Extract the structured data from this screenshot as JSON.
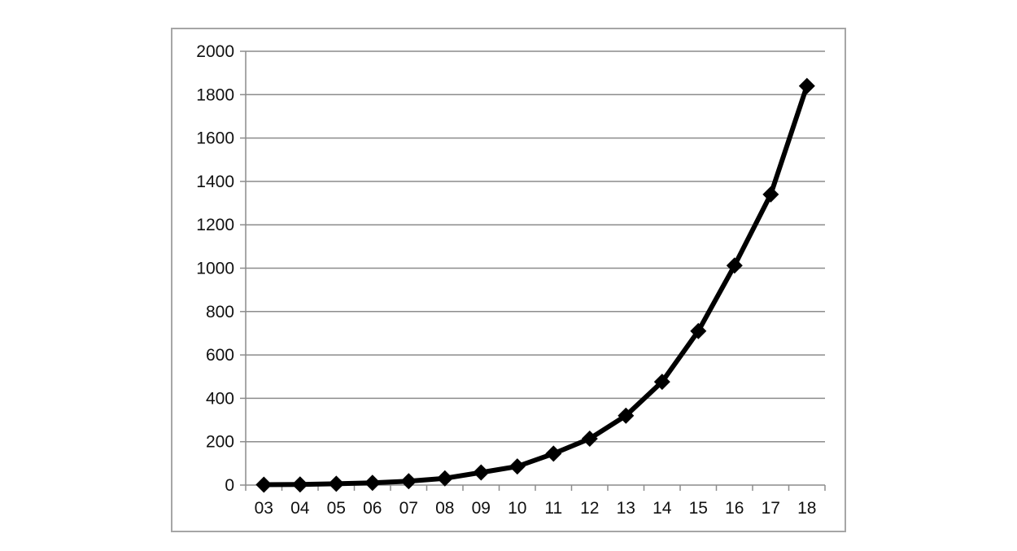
{
  "chart_data": {
    "type": "line",
    "categories": [
      "03",
      "04",
      "05",
      "06",
      "07",
      "08",
      "09",
      "10",
      "11",
      "12",
      "13",
      "14",
      "15",
      "16",
      "17",
      "18"
    ],
    "series": [
      {
        "values": [
          2,
          3,
          6,
          10,
          18,
          31,
          58,
          86,
          145,
          214,
          320,
          476,
          710,
          1012,
          1340,
          1840
        ]
      }
    ],
    "title": "",
    "xlabel": "",
    "ylabel": "",
    "ylim": [
      0,
      2000
    ],
    "yticks": [
      "0",
      "200",
      "400",
      "600",
      "800",
      "1000",
      "1200",
      "1400",
      "1600",
      "1800",
      "2000"
    ],
    "grid": true,
    "legend": "none",
    "colors": {
      "line": "#000000",
      "grid": "#8c8c8c",
      "axis": "#8c8c8c",
      "frame": "#a6a6a6"
    },
    "marker": "diamond"
  }
}
